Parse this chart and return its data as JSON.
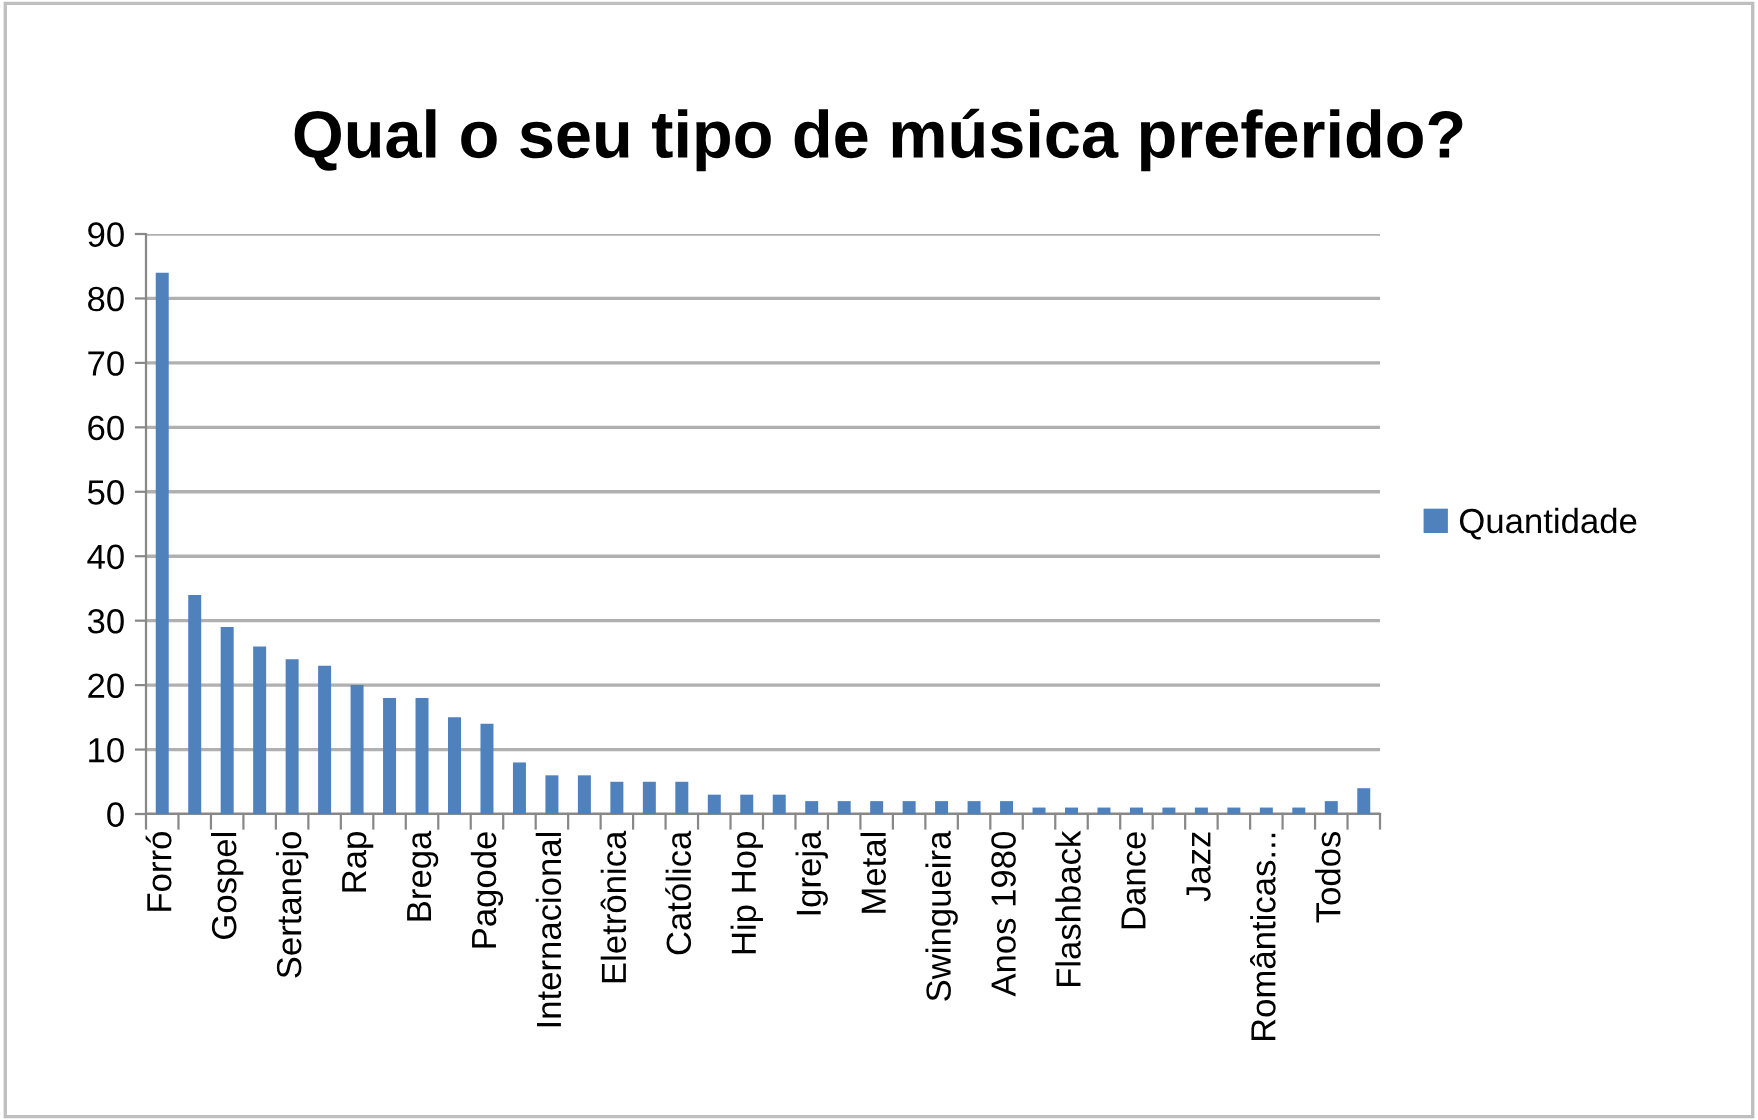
{
  "chart_data": {
    "type": "bar",
    "title": "Qual o seu tipo de música preferido?",
    "categories": [
      "Forró",
      null,
      "Gospel",
      null,
      "Sertanejo",
      null,
      "Rap",
      null,
      "Brega",
      null,
      "Pagode",
      null,
      "Internacional",
      null,
      "Eletrônica",
      null,
      "Católica",
      null,
      "Hip Hop",
      null,
      "Igreja",
      null,
      "Metal",
      null,
      "Swingueira",
      null,
      "Anos 1980",
      null,
      "Flashback",
      null,
      "Dance",
      null,
      "Jazz",
      null,
      "Românticas...",
      null,
      "Todos",
      null
    ],
    "series": [
      {
        "name": "Quantidade",
        "color": "#4f81bd",
        "values": [
          84,
          34,
          29,
          26,
          24,
          23,
          20,
          18,
          18,
          15,
          14,
          8,
          6,
          6,
          5,
          5,
          5,
          3,
          3,
          3,
          2,
          2,
          2,
          2,
          2,
          2,
          2,
          1,
          1,
          1,
          1,
          1,
          1,
          1,
          1,
          1,
          2,
          4
        ]
      }
    ],
    "ylim": [
      0,
      90
    ],
    "yticks": [
      0,
      10,
      20,
      30,
      40,
      50,
      60,
      70,
      80,
      90
    ],
    "grid": "y",
    "legend": "right"
  }
}
